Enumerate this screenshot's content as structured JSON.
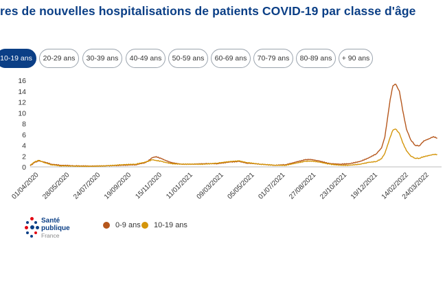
{
  "title": "res de nouvelles hospitalisations de patients COVID-19 par classe d'âge",
  "tabs": [
    {
      "label": "10-19 ans",
      "active": true
    },
    {
      "label": "20-29 ans",
      "active": false
    },
    {
      "label": "30-39 ans",
      "active": false
    },
    {
      "label": "40-49 ans",
      "active": false
    },
    {
      "label": "50-59 ans",
      "active": false
    },
    {
      "label": "60-69 ans",
      "active": false
    },
    {
      "label": "70-79 ans",
      "active": false
    },
    {
      "label": "80-89 ans",
      "active": false
    },
    {
      "label": "+ 90 ans",
      "active": false
    }
  ],
  "logo": {
    "line1": "Santé",
    "line2": "publique",
    "line3": "France"
  },
  "chart_data": {
    "type": "line",
    "title": "res de nouvelles hospitalisations de patients COVID-19 par classe d'âge",
    "xlabel": "",
    "ylabel": "",
    "ylim": [
      0,
      16
    ],
    "yticks": [
      0,
      2,
      4,
      6,
      8,
      10,
      12,
      14,
      16
    ],
    "xlim": [
      "2020-03-20",
      "2022-04-20"
    ],
    "xtick_labels": [
      "01/04/2020",
      "28/05/2020",
      "24/07/2020",
      "19/09/2020",
      "15/11/2020",
      "11/01/2021",
      "09/03/2021",
      "05/05/2021",
      "01/07/2021",
      "27/08/2021",
      "23/10/2021",
      "19/12/2021",
      "14/02/2022",
      "24/03/2022"
    ],
    "xtick_dates": [
      "2020-04-01",
      "2020-05-28",
      "2020-07-24",
      "2020-09-19",
      "2020-11-15",
      "2021-01-11",
      "2021-03-09",
      "2021-05-05",
      "2021-07-01",
      "2021-08-27",
      "2021-10-23",
      "2021-12-19",
      "2022-02-14",
      "2022-03-24"
    ],
    "grid": false,
    "legend_position": "bottom-left",
    "series": [
      {
        "name": "0-9 ans",
        "color": "#b5561b",
        "points": [
          [
            "2020-03-20",
            0.2
          ],
          [
            "2020-03-28",
            0.8
          ],
          [
            "2020-04-05",
            1.1
          ],
          [
            "2020-04-15",
            0.9
          ],
          [
            "2020-04-28",
            0.5
          ],
          [
            "2020-05-15",
            0.3
          ],
          [
            "2020-06-10",
            0.2
          ],
          [
            "2020-07-10",
            0.15
          ],
          [
            "2020-08-10",
            0.2
          ],
          [
            "2020-09-05",
            0.3
          ],
          [
            "2020-10-01",
            0.4
          ],
          [
            "2020-10-20",
            0.8
          ],
          [
            "2020-11-01",
            1.7
          ],
          [
            "2020-11-08",
            1.9
          ],
          [
            "2020-11-18",
            1.5
          ],
          [
            "2020-12-05",
            0.8
          ],
          [
            "2020-12-25",
            0.5
          ],
          [
            "2021-01-15",
            0.5
          ],
          [
            "2021-02-05",
            0.6
          ],
          [
            "2021-03-01",
            0.6
          ],
          [
            "2021-03-25",
            0.9
          ],
          [
            "2021-04-10",
            1.0
          ],
          [
            "2021-04-25",
            0.7
          ],
          [
            "2021-05-20",
            0.5
          ],
          [
            "2021-06-15",
            0.3
          ],
          [
            "2021-07-05",
            0.4
          ],
          [
            "2021-07-25",
            0.9
          ],
          [
            "2021-08-10",
            1.3
          ],
          [
            "2021-08-20",
            1.4
          ],
          [
            "2021-09-05",
            1.1
          ],
          [
            "2021-09-25",
            0.6
          ],
          [
            "2021-10-15",
            0.5
          ],
          [
            "2021-11-01",
            0.6
          ],
          [
            "2021-11-20",
            1.0
          ],
          [
            "2021-12-05",
            1.6
          ],
          [
            "2021-12-20",
            2.4
          ],
          [
            "2021-12-30",
            3.5
          ],
          [
            "2022-01-05",
            5.5
          ],
          [
            "2022-01-10",
            9.0
          ],
          [
            "2022-01-15",
            12.5
          ],
          [
            "2022-01-20",
            15.0
          ],
          [
            "2022-01-25",
            15.3
          ],
          [
            "2022-02-01",
            14.0
          ],
          [
            "2022-02-07",
            10.5
          ],
          [
            "2022-02-14",
            7.0
          ],
          [
            "2022-02-22",
            5.0
          ],
          [
            "2022-03-02",
            4.0
          ],
          [
            "2022-03-10",
            3.9
          ],
          [
            "2022-03-18",
            4.8
          ],
          [
            "2022-03-28",
            5.2
          ],
          [
            "2022-04-05",
            5.6
          ],
          [
            "2022-04-12",
            5.3
          ]
        ]
      },
      {
        "name": "10-19 ans",
        "color": "#d4950a",
        "points": [
          [
            "2020-03-20",
            0.3
          ],
          [
            "2020-03-28",
            0.9
          ],
          [
            "2020-04-05",
            1.2
          ],
          [
            "2020-04-15",
            0.8
          ],
          [
            "2020-04-28",
            0.4
          ],
          [
            "2020-05-15",
            0.2
          ],
          [
            "2020-06-10",
            0.15
          ],
          [
            "2020-07-10",
            0.1
          ],
          [
            "2020-08-10",
            0.2
          ],
          [
            "2020-09-05",
            0.4
          ],
          [
            "2020-10-01",
            0.5
          ],
          [
            "2020-10-20",
            0.9
          ],
          [
            "2020-11-01",
            1.3
          ],
          [
            "2020-11-08",
            1.2
          ],
          [
            "2020-11-18",
            1.0
          ],
          [
            "2020-12-05",
            0.6
          ],
          [
            "2020-12-25",
            0.5
          ],
          [
            "2021-01-15",
            0.5
          ],
          [
            "2021-02-05",
            0.5
          ],
          [
            "2021-03-01",
            0.7
          ],
          [
            "2021-03-25",
            1.0
          ],
          [
            "2021-04-10",
            1.1
          ],
          [
            "2021-04-25",
            0.8
          ],
          [
            "2021-05-20",
            0.5
          ],
          [
            "2021-06-15",
            0.3
          ],
          [
            "2021-07-05",
            0.3
          ],
          [
            "2021-07-25",
            0.7
          ],
          [
            "2021-08-10",
            1.0
          ],
          [
            "2021-08-20",
            1.1
          ],
          [
            "2021-09-05",
            0.9
          ],
          [
            "2021-09-25",
            0.5
          ],
          [
            "2021-10-15",
            0.3
          ],
          [
            "2021-11-01",
            0.3
          ],
          [
            "2021-11-20",
            0.5
          ],
          [
            "2021-12-05",
            0.8
          ],
          [
            "2021-12-20",
            1.0
          ],
          [
            "2021-12-30",
            1.5
          ],
          [
            "2022-01-05",
            2.5
          ],
          [
            "2022-01-10",
            4.0
          ],
          [
            "2022-01-15",
            5.5
          ],
          [
            "2022-01-20",
            6.8
          ],
          [
            "2022-01-25",
            7.0
          ],
          [
            "2022-02-01",
            6.2
          ],
          [
            "2022-02-07",
            4.5
          ],
          [
            "2022-02-14",
            3.0
          ],
          [
            "2022-02-22",
            2.0
          ],
          [
            "2022-03-02",
            1.6
          ],
          [
            "2022-03-10",
            1.6
          ],
          [
            "2022-03-18",
            1.9
          ],
          [
            "2022-03-28",
            2.1
          ],
          [
            "2022-04-05",
            2.3
          ],
          [
            "2022-04-12",
            2.3
          ]
        ]
      }
    ]
  }
}
